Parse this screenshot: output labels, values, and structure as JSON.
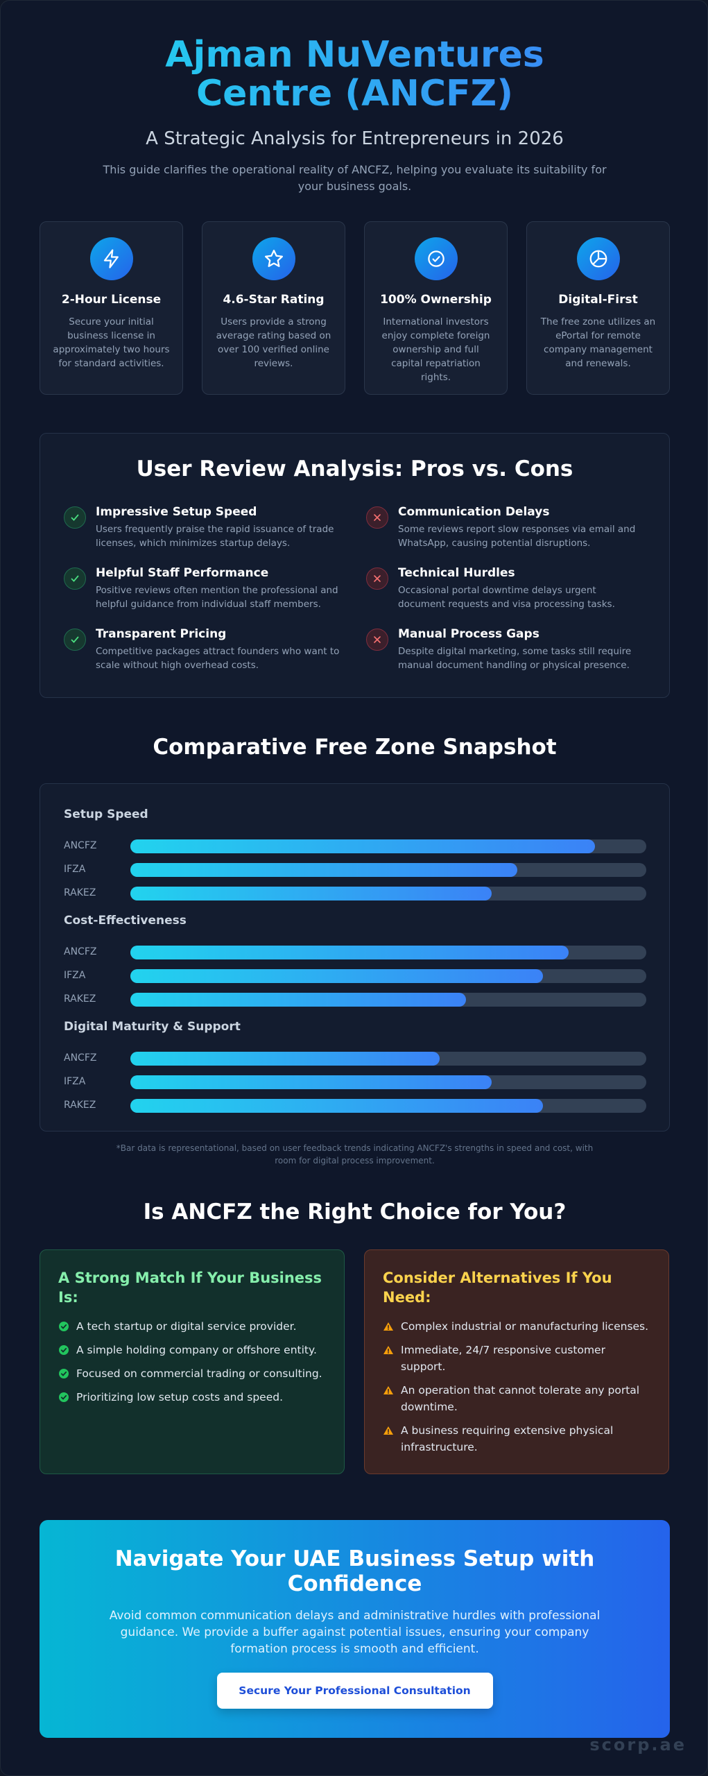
{
  "header": {
    "title": "Ajman NuVentures Centre (ANCFZ)",
    "subtitle": "A Strategic Analysis for Entrepreneurs in 2026",
    "intro": "This guide clarifies the operational reality of ANCFZ, helping you evaluate its suitability for your business goals."
  },
  "stats": [
    {
      "icon": "lightning-icon",
      "title": "2-Hour License",
      "desc": "Secure your initial business license in approximately two hours for standard activities."
    },
    {
      "icon": "star-icon",
      "title": "4.6-Star Rating",
      "desc": "Users provide a strong average rating based on over 100 verified online reviews."
    },
    {
      "icon": "badge-check-icon",
      "title": "100% Ownership",
      "desc": "International investors enjoy complete foreign ownership and full capital repatriation rights."
    },
    {
      "icon": "pie-chart-icon",
      "title": "Digital-First",
      "desc": "The free zone utilizes an ePortal for remote company management and renewals."
    }
  ],
  "reviews": {
    "title": "User Review Analysis: Pros vs. Cons",
    "pros": [
      {
        "title": "Impressive Setup Speed",
        "desc": "Users frequently praise the rapid issuance of trade licenses, which minimizes startup delays."
      },
      {
        "title": "Helpful Staff Performance",
        "desc": "Positive reviews often mention the professional and helpful guidance from individual staff members."
      },
      {
        "title": "Transparent Pricing",
        "desc": "Competitive packages attract founders who want to scale without high overhead costs."
      }
    ],
    "cons": [
      {
        "title": "Communication Delays",
        "desc": "Some reviews report slow responses via email and WhatsApp, causing potential disruptions."
      },
      {
        "title": "Technical Hurdles",
        "desc": "Occasional portal downtime delays urgent document requests and visa processing tasks."
      },
      {
        "title": "Manual Process Gaps",
        "desc": "Despite digital marketing, some tasks still require manual document handling or physical presence."
      }
    ]
  },
  "comparison": {
    "title": "Comparative Free Zone Snapshot",
    "footnote": "*Bar data is representational, based on user feedback trends indicating ANCFZ's strengths in speed and cost, with room for digital process improvement."
  },
  "chart_data": {
    "type": "bar",
    "orientation": "horizontal",
    "categories": [
      "ANCFZ",
      "IFZA",
      "RAKEZ"
    ],
    "groups": [
      {
        "name": "Setup Speed",
        "values": [
          90,
          75,
          70
        ]
      },
      {
        "name": "Cost-Effectiveness",
        "values": [
          85,
          80,
          65
        ]
      },
      {
        "name": "Digital Maturity & Support",
        "values": [
          60,
          70,
          80
        ]
      }
    ],
    "xlim": [
      0,
      100
    ],
    "colors": {
      "fill_start": "#22d3ee",
      "fill_end": "#3b82f6",
      "track": "#334155"
    }
  },
  "choice": {
    "title": "Is ANCFZ the Right Choice for You?",
    "match": {
      "title": "A Strong Match If Your Business Is:",
      "items": [
        "A tech startup or digital service provider.",
        "A simple holding company or offshore entity.",
        "Focused on commercial trading or consulting.",
        "Prioritizing low setup costs and speed."
      ]
    },
    "alternatives": {
      "title": "Consider Alternatives If You Need:",
      "items": [
        "Complex industrial or manufacturing licenses.",
        "Immediate, 24/7 responsive customer support.",
        "An operation that cannot tolerate any portal downtime.",
        "A business requiring extensive physical infrastructure."
      ]
    }
  },
  "cta": {
    "title": "Navigate Your UAE Business Setup with Confidence",
    "text": "Avoid common communication delays and administrative hurdles with professional guidance. We provide a buffer against potential issues, ensuring your company formation process is smooth and efficient.",
    "button": "Secure Your Professional Consultation"
  },
  "watermark": "scorp.ae"
}
